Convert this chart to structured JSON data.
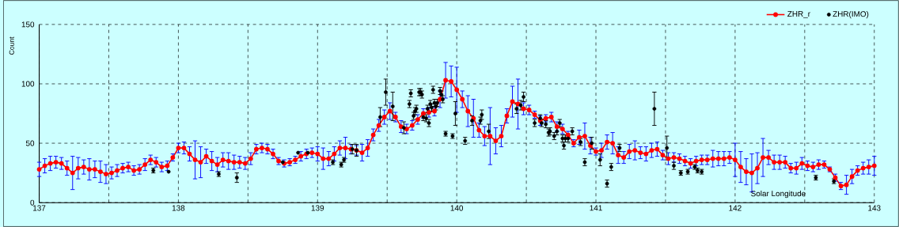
{
  "chart_data": {
    "type": "line",
    "xlabel": "Solar Longitude",
    "ylabel": "Count",
    "xlim": [
      137,
      143
    ],
    "ylim": [
      0,
      150
    ],
    "xticks": [
      137,
      {
        "value": 137.5,
        "label": null
      },
      138,
      {
        "value": 138.5,
        "label": null
      },
      139,
      {
        "value": 139.5,
        "label": null
      },
      140,
      {
        "value": 140.5,
        "label": null
      },
      141,
      {
        "value": 141.5,
        "label": null
      },
      142,
      {
        "value": 142.5,
        "label": null
      },
      143
    ],
    "yticks": [
      0,
      50,
      100,
      150
    ],
    "grid": true,
    "legend": "top right",
    "x": [
      137.0,
      137.04,
      137.08,
      137.12,
      137.16,
      137.2,
      137.24,
      137.28,
      137.32,
      137.36,
      137.4,
      137.44,
      137.48,
      137.52,
      137.56,
      137.6,
      137.64,
      137.68,
      137.72,
      137.76,
      137.8,
      137.84,
      137.88,
      137.92,
      137.96,
      138.0,
      138.04,
      138.08,
      138.12,
      138.16,
      138.2,
      138.24,
      138.28,
      138.32,
      138.36,
      138.4,
      138.44,
      138.48,
      138.52,
      138.56,
      138.6,
      138.64,
      138.68,
      138.72,
      138.76,
      138.8,
      138.84,
      138.88,
      138.92,
      138.96,
      139.0,
      139.04,
      139.08,
      139.12,
      139.16,
      139.2,
      139.24,
      139.28,
      139.32,
      139.36,
      139.4,
      139.44,
      139.48,
      139.52,
      139.56,
      139.6,
      139.64,
      139.68,
      139.72,
      139.76,
      139.8,
      139.84,
      139.88,
      139.92,
      139.96,
      140.0,
      140.04,
      140.08,
      140.12,
      140.16,
      140.2,
      140.24,
      140.28,
      140.32,
      140.36,
      140.4,
      140.44,
      140.48,
      140.52,
      140.56,
      140.6,
      140.64,
      140.68,
      140.72,
      140.76,
      140.8,
      140.84,
      140.88,
      140.92,
      140.96,
      141.0,
      141.04,
      141.08,
      141.12,
      141.16,
      141.2,
      141.24,
      141.28,
      141.32,
      141.36,
      141.4,
      141.44,
      141.48,
      141.52,
      141.56,
      141.6,
      141.64,
      141.68,
      141.72,
      141.76,
      141.8,
      141.84,
      141.88,
      141.92,
      141.96,
      142.0,
      142.04,
      142.08,
      142.12,
      142.16,
      142.2,
      142.24,
      142.28,
      142.32,
      142.36,
      142.4,
      142.44,
      142.48,
      142.52,
      142.56,
      142.6,
      142.64,
      142.68,
      142.72,
      142.76,
      142.8,
      142.84,
      142.88,
      142.92,
      142.96,
      143.0
    ],
    "series": [
      {
        "name": "ZHR_r",
        "color": "#ff0000",
        "marker": "circle",
        "line_style": "solid",
        "values": [
          28,
          31,
          33,
          34,
          33,
          29,
          25,
          29,
          30,
          28,
          28,
          26,
          24,
          25,
          27,
          29,
          30,
          27,
          28,
          32,
          36,
          34,
          30,
          31,
          38,
          46,
          46,
          41,
          36,
          34,
          39,
          35,
          32,
          36,
          35,
          34,
          34,
          33,
          37,
          45,
          46,
          45,
          41,
          35,
          33,
          34,
          36,
          39,
          41,
          42,
          41,
          37,
          37,
          41,
          46,
          46,
          45,
          44,
          42,
          46,
          57,
          65,
          72,
          77,
          72,
          64,
          62,
          65,
          70,
          75,
          76,
          77,
          87,
          103,
          102,
          95,
          87,
          77,
          71,
          61,
          56,
          56,
          52,
          56,
          73,
          85,
          83,
          79,
          78,
          74,
          69,
          71,
          72,
          64,
          62,
          57,
          50,
          55,
          56,
          48,
          43,
          44,
          51,
          50,
          40,
          38,
          43,
          44,
          42,
          41,
          44,
          45,
          40,
          37,
          38,
          37,
          35,
          33,
          35,
          36,
          36,
          37,
          37,
          37,
          38,
          36,
          30,
          26,
          25,
          29,
          38,
          38,
          34,
          34,
          34,
          29,
          29,
          33,
          31,
          30,
          32,
          32,
          28,
          21,
          14,
          15,
          22,
          27,
          29,
          30,
          31
        ],
        "errors": [
          6,
          6,
          6,
          5,
          5,
          6,
          14,
          9,
          6,
          9,
          7,
          9,
          8,
          5,
          5,
          4,
          4,
          4,
          4,
          5,
          4,
          4,
          4,
          4,
          3,
          4,
          5,
          6,
          16,
          13,
          6,
          8,
          6,
          6,
          7,
          6,
          5,
          5,
          5,
          4,
          4,
          4,
          4,
          3,
          3,
          3,
          3,
          4,
          4,
          4,
          6,
          9,
          6,
          6,
          6,
          9,
          4,
          4,
          7,
          7,
          5,
          5,
          6,
          7,
          4,
          5,
          4,
          4,
          4,
          4,
          4,
          4,
          7,
          15,
          13,
          19,
          7,
          13,
          16,
          6,
          8,
          24,
          11,
          9,
          6,
          13,
          21,
          5,
          4,
          3,
          4,
          3,
          4,
          4,
          4,
          3,
          3,
          6,
          11,
          7,
          3,
          6,
          6,
          9,
          7,
          5,
          6,
          8,
          5,
          6,
          6,
          6,
          4,
          5,
          4,
          4,
          4,
          4,
          4,
          4,
          4,
          7,
          6,
          6,
          5,
          14,
          13,
          11,
          16,
          13,
          16,
          6,
          6,
          6,
          5,
          4,
          5,
          5,
          4,
          4,
          4,
          3,
          2,
          3,
          3,
          8,
          6,
          4,
          5,
          6,
          8
        ]
      },
      {
        "name": "ZHR(IMO)",
        "type": "scatter",
        "color": "#000000",
        "marker": "circle",
        "x": [
          137.82,
          137.93,
          138.29,
          138.42,
          138.75,
          138.86,
          138.93,
          139.11,
          139.17,
          139.19,
          139.25,
          139.28,
          139.45,
          139.49,
          139.54,
          139.62,
          139.66,
          139.67,
          139.69,
          139.7,
          139.71,
          139.73,
          139.74,
          139.75,
          139.76,
          139.78,
          139.79,
          139.8,
          139.81,
          139.82,
          139.83,
          139.84,
          139.85,
          139.86,
          139.88,
          139.89,
          139.9,
          139.92,
          139.97,
          139.99,
          140.06,
          140.11,
          140.17,
          140.18,
          140.23,
          140.43,
          140.46,
          140.48,
          140.56,
          140.6,
          140.61,
          140.64,
          140.66,
          140.67,
          140.7,
          140.72,
          140.74,
          140.76,
          140.77,
          140.78,
          140.8,
          140.83,
          140.89,
          140.92,
          140.97,
          141.03,
          141.08,
          141.11,
          141.17,
          141.42,
          141.51,
          141.56,
          141.61,
          141.66,
          141.71,
          141.73,
          141.76,
          142.58,
          142.71
        ],
        "values": [
          27,
          26,
          24,
          21,
          34,
          42,
          42,
          34,
          32,
          36,
          45,
          44,
          72,
          93,
          81,
          63,
          83,
          92,
          73,
          77,
          79,
          93,
          93,
          91,
          72,
          71,
          79,
          67,
          83,
          80,
          95,
          84,
          81,
          84,
          94,
          91,
          87,
          58,
          56,
          75,
          52,
          69,
          69,
          74,
          60,
          79,
          82,
          89,
          67,
          71,
          67,
          66,
          59,
          60,
          56,
          60,
          67,
          54,
          48,
          54,
          54,
          60,
          51,
          34,
          50,
          36,
          16,
          30,
          46,
          79,
          46,
          31,
          25,
          26,
          30,
          27,
          26,
          21,
          18
        ],
        "errors": [
          2,
          null,
          2,
          4,
          null,
          null,
          null,
          2,
          2,
          2,
          4,
          5,
          8,
          11,
          12,
          5,
          3,
          3,
          3,
          3,
          3,
          3,
          3,
          3,
          3,
          3,
          3,
          3,
          3,
          3,
          3,
          3,
          3,
          3,
          3,
          3,
          3,
          2,
          2,
          10,
          3,
          4,
          3,
          4,
          6,
          4,
          4,
          4,
          3,
          3,
          3,
          3,
          3,
          3,
          3,
          3,
          3,
          3,
          3,
          3,
          3,
          3,
          3,
          3,
          5,
          5,
          3,
          3,
          3,
          14,
          10,
          3,
          2,
          2,
          2,
          2,
          2,
          2,
          2
        ]
      }
    ]
  }
}
